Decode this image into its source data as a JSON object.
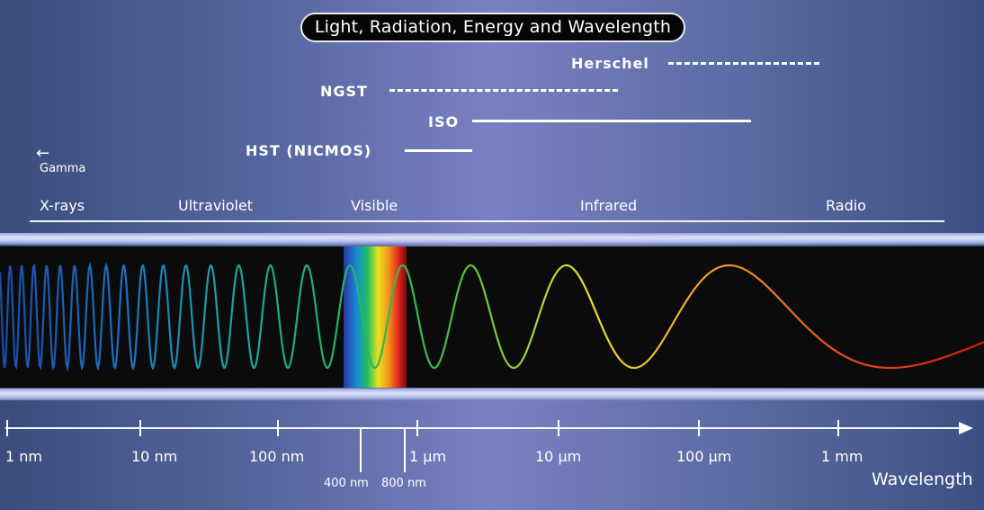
{
  "title": "Light, Radiation, Energy and Wavelength",
  "missions": {
    "herschel": "Herschel",
    "ngst": "NGST",
    "iso": "ISO",
    "hst": "HST (NICMOS)"
  },
  "bands": {
    "gamma": "Gamma",
    "xrays": "X-rays",
    "ultraviolet": "Ultraviolet",
    "visible": "Visible",
    "infrared": "Infrared",
    "radio": "Radio"
  },
  "axis": {
    "ticks": [
      "1 nm",
      "10 nm",
      "100 nm",
      "1 µm",
      "10 µm",
      "100 µm",
      "1 mm"
    ],
    "visible_bounds": [
      "400 nm",
      "800 nm"
    ],
    "title": "Wavelength"
  },
  "colors": {
    "background_edge": "#3a4d7e",
    "background_center": "#7a80c2",
    "wave_short": "#1a5cc8",
    "wave_long": "#e01818"
  }
}
